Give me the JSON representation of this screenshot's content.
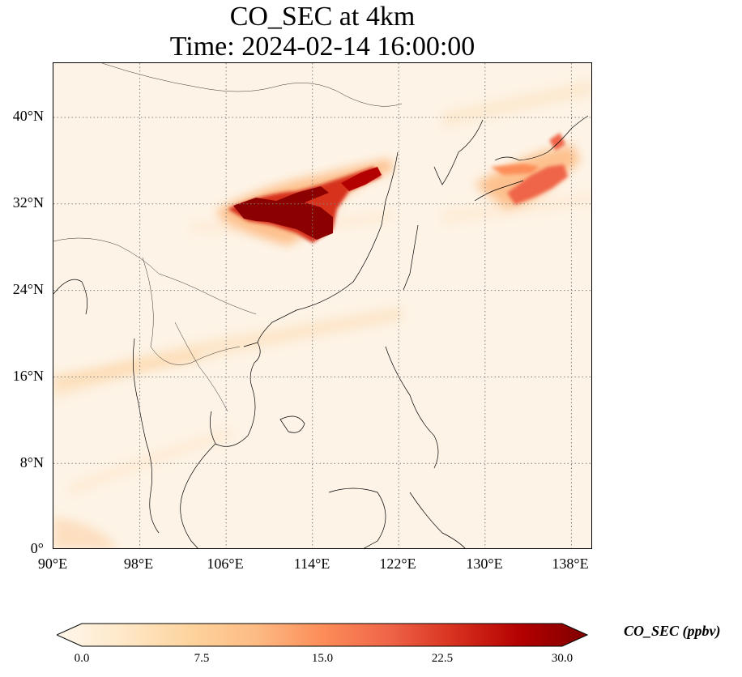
{
  "title": {
    "line1": "CO_SEC at 4km",
    "line2": "Time: 2024-02-14 16:00:00"
  },
  "map": {
    "projection": "PlateCarree",
    "lon_range": [
      90,
      140
    ],
    "lat_range": [
      0,
      45
    ],
    "gridlines": "dotted grey",
    "lon_ticks": [
      "90°E",
      "98°E",
      "106°E",
      "114°E",
      "122°E",
      "130°E",
      "138°E"
    ],
    "lat_ticks": [
      "0°",
      "8°N",
      "16°N",
      "24°N",
      "32°N",
      "40°N"
    ],
    "colormap": "OrRd",
    "features": [
      "coastlines",
      "country borders"
    ]
  },
  "colorbar": {
    "label": "CO_SEC (ppbv)",
    "ticks": [
      "0.0",
      "7.5",
      "15.0",
      "22.5",
      "30.0"
    ],
    "vmin": 0,
    "vmax": 30,
    "extend": "both",
    "colors": [
      "#fff7ec",
      "#fee8c8",
      "#fdd49e",
      "#fdbb84",
      "#fc8d59",
      "#ef6548",
      "#d7301f",
      "#b30000",
      "#7f0000"
    ]
  }
}
